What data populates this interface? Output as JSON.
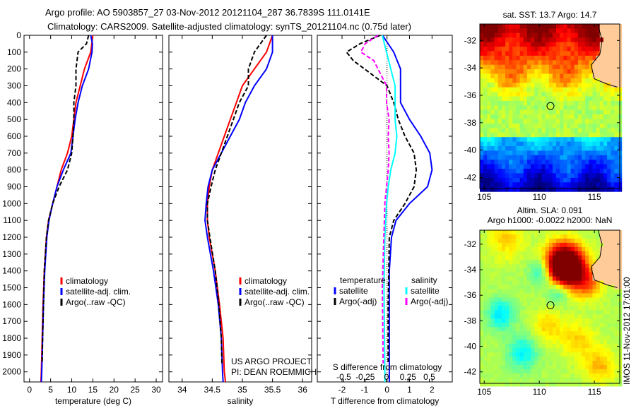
{
  "header": {
    "line1": "Argo profile: AO 5903857_27 03-Nov-2012 20121104_287 36.7839S 111.0141E",
    "line2": "Climatology: CARS2009. Satellite-adjusted climatology: synTS_20121104.nc (0.75d later)"
  },
  "side_label": "IMOS 11-Nov-2012 17:01:00",
  "project": {
    "line1": "US ARGO PROJECT",
    "line2": "PI: DEAN ROEMMICH"
  },
  "chart_data": [
    {
      "type": "line",
      "id": "temperature",
      "xlabel": "temperature (deg C)",
      "xlim": [
        -1.3,
        31.5
      ],
      "xticks": [
        0,
        5,
        10,
        15,
        20,
        25,
        30
      ],
      "ylim": [
        0,
        2060
      ],
      "yreversed": true,
      "yticks": [
        0,
        100,
        200,
        300,
        400,
        500,
        600,
        700,
        800,
        900,
        1000,
        1100,
        1200,
        1300,
        1400,
        1500,
        1600,
        1700,
        1800,
        1900,
        2000
      ],
      "legend": [
        "climatology",
        "satellite-adj. clim.",
        "Argo(..raw -QC)"
      ],
      "series": [
        {
          "name": "climatology",
          "color": "#ff0000",
          "style": "solid",
          "depth": [
            0,
            100,
            200,
            300,
            400,
            500,
            600,
            700,
            800,
            900,
            1000,
            1100,
            1200,
            1400,
            1600,
            1800,
            2000,
            2060
          ],
          "values": [
            15,
            14.5,
            13,
            12,
            11,
            10.5,
            10,
            9,
            7.5,
            6.5,
            5.5,
            4.5,
            4,
            3.5,
            3.2,
            3,
            2.8,
            2.7
          ]
        },
        {
          "name": "satellite-adj. clim.",
          "color": "#0000ff",
          "style": "solid",
          "depth": [
            0,
            50,
            100,
            200,
            300,
            400,
            500,
            600,
            700,
            800,
            900,
            1000,
            1100,
            1200,
            1400,
            1600,
            1800,
            2000,
            2060
          ],
          "values": [
            14.5,
            14.9,
            14.8,
            14,
            12.5,
            11.5,
            10.8,
            10.3,
            9.8,
            8,
            6.5,
            5.5,
            4.6,
            4.1,
            3.6,
            3.3,
            3.1,
            2.9,
            2.8
          ]
        },
        {
          "name": "Argo(..raw -QC)",
          "color": "#000000",
          "style": "dashed",
          "depth": [
            0,
            50,
            100,
            200,
            300,
            400,
            500,
            600,
            700,
            800,
            900,
            1000,
            1100,
            1200,
            1400,
            1600,
            1800,
            1950
          ],
          "values": [
            14,
            13.5,
            11.5,
            11,
            11,
            10.5,
            10.5,
            10.3,
            10,
            9,
            7,
            5.5,
            4.5,
            4,
            3.5,
            3.3,
            3.1,
            3
          ]
        }
      ]
    },
    {
      "type": "line",
      "id": "salinity",
      "xlabel": "salinity",
      "xlim": [
        33.78,
        36.15
      ],
      "xticks": [
        34,
        34.5,
        35,
        35.5,
        36
      ],
      "ylim": [
        0,
        2060
      ],
      "yreversed": true,
      "legend": [
        "climatology",
        "satellite-adj. clim.",
        "Argo(..raw -QC)"
      ],
      "series": [
        {
          "name": "climatology",
          "color": "#ff0000",
          "style": "solid",
          "depth": [
            0,
            100,
            200,
            300,
            400,
            500,
            600,
            700,
            800,
            900,
            1000,
            1100,
            1200,
            1400,
            1600,
            1800,
            2000,
            2060
          ],
          "values": [
            35.5,
            35.4,
            35.2,
            35.0,
            34.9,
            34.8,
            34.7,
            34.6,
            34.5,
            34.45,
            34.42,
            34.42,
            34.45,
            34.55,
            34.62,
            34.68,
            34.7,
            34.72
          ]
        },
        {
          "name": "satellite-adj. clim.",
          "color": "#0000ff",
          "style": "solid",
          "depth": [
            0,
            100,
            200,
            300,
            400,
            500,
            600,
            700,
            800,
            900,
            1000,
            1100,
            1200,
            1400,
            1600,
            1800,
            2000,
            2060
          ],
          "values": [
            35.5,
            35.5,
            35.4,
            35.2,
            35.05,
            34.95,
            34.8,
            34.65,
            34.5,
            34.43,
            34.4,
            34.38,
            34.42,
            34.52,
            34.6,
            34.65,
            34.67,
            34.68
          ]
        },
        {
          "name": "Argo(..raw -QC)",
          "color": "#000000",
          "style": "dashed",
          "depth": [
            0,
            100,
            200,
            300,
            400,
            500,
            600,
            700,
            800,
            900,
            1000,
            1100,
            1200,
            1400,
            1600,
            1800,
            1950
          ],
          "values": [
            35.4,
            35.2,
            35.1,
            35.1,
            34.95,
            34.85,
            34.75,
            34.65,
            34.55,
            34.48,
            34.42,
            34.42,
            34.46,
            34.55,
            34.61,
            34.65,
            34.66
          ]
        }
      ]
    },
    {
      "type": "line",
      "id": "difference",
      "xlabel": "T difference from climatology",
      "xlabel2": "S difference from climatology",
      "xlim": [
        -3.1,
        2.9
      ],
      "xticks": [
        -2,
        -1,
        0,
        1,
        2
      ],
      "x2lim": [
        -0.5,
        0.5
      ],
      "x2ticks": [
        -0.5,
        -0.25,
        0,
        0.25,
        0.5
      ],
      "x2ticklabels": [
        "-0.5",
        "-0.25",
        "0",
        "0.25",
        "0.5"
      ],
      "ylim": [
        0,
        2060
      ],
      "yreversed": true,
      "legend": {
        "temperature": "temperature",
        "salinity": "salinity",
        "t_items": [
          "satellite",
          "Argo(-adj)"
        ],
        "s_items": [
          "satellite",
          "Argo(-adj)"
        ]
      },
      "series": [
        {
          "name": "T satellite",
          "axis": "T",
          "color": "#0000ff",
          "style": "solid",
          "depth": [
            0,
            100,
            200,
            300,
            400,
            500,
            600,
            700,
            800,
            900,
            1000,
            1100,
            1200,
            1400,
            2000,
            2060
          ],
          "values": [
            -0.2,
            0.3,
            0.6,
            0.6,
            0.6,
            1.0,
            1.5,
            1.9,
            2.0,
            1.8,
            1.0,
            0.4,
            0.2,
            0.1,
            0.1,
            0.1
          ]
        },
        {
          "name": "T Argo(-adj)",
          "axis": "T",
          "color": "#000000",
          "style": "dashed",
          "depth": [
            0,
            50,
            100,
            150,
            200,
            300,
            400,
            500,
            600,
            700,
            800,
            900,
            1000,
            1100,
            1200,
            1600,
            1950
          ],
          "values": [
            -0.3,
            -1.2,
            -1.8,
            -1.5,
            -1.0,
            0,
            0.3,
            0.5,
            0.8,
            1.2,
            1.3,
            1.2,
            0.8,
            0.3,
            0.1,
            0.05,
            0.05
          ]
        },
        {
          "name": "S satellite",
          "axis": "S",
          "color": "#00ffff",
          "style": "solid",
          "depth": [
            0,
            100,
            200,
            300,
            400,
            500,
            600,
            700,
            800,
            900,
            1000,
            1200,
            1500,
            2000,
            2060
          ],
          "values": [
            -0.05,
            0,
            0.05,
            0.1,
            0.1,
            0.1,
            0.12,
            0.1,
            0.05,
            0.02,
            0,
            -0.02,
            -0.03,
            -0.02,
            -0.02
          ]
        },
        {
          "name": "S Argo(-adj)",
          "axis": "S",
          "color": "#ff00ff",
          "style": "dashed",
          "depth": [
            0,
            50,
            100,
            150,
            200,
            300,
            400,
            500,
            600,
            700,
            800,
            900,
            1000,
            1500,
            1950
          ],
          "values": [
            -0.1,
            -0.25,
            -0.3,
            -0.15,
            -0.1,
            0,
            0,
            0.03,
            0.02,
            0.03,
            0.02,
            0,
            -0.02,
            -0.05,
            -0.04
          ]
        }
      ]
    },
    {
      "type": "heatmap",
      "id": "sst_map",
      "title": "sat. SST: 13.7 Argo: 14.7",
      "xlim": [
        104.6,
        117.3
      ],
      "ylim": [
        -42.8,
        -30.8
      ],
      "xticks": [
        105,
        110,
        115
      ],
      "yticks": [
        -32,
        -34,
        -36,
        -38,
        -40,
        -42
      ],
      "marker": {
        "lon": 111.0141,
        "lat": -36.7839
      }
    },
    {
      "type": "heatmap",
      "id": "sla_map",
      "title": "Altim. SLA: 0.091",
      "subtitle": "Argo h1000: -0.0022 h2000: NaN",
      "xlim": [
        104.6,
        117.3
      ],
      "ylim": [
        -42.9,
        -30.9
      ],
      "xticks": [
        105,
        110,
        115
      ],
      "yticks": [
        -32,
        -34,
        -36,
        -38,
        -40,
        -42
      ],
      "marker": {
        "lon": 111.0141,
        "lat": -36.7839
      }
    }
  ]
}
